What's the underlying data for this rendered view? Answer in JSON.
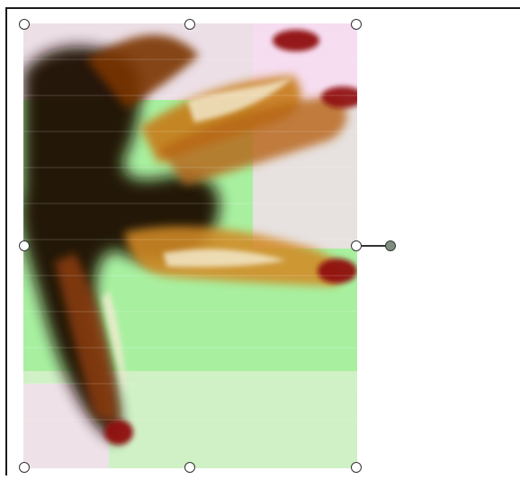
{
  "canvas": {
    "background": "#ffffff",
    "frame_color": "#1a1a1a"
  },
  "selected_object": {
    "type": "image",
    "icon": "selected-image-icon",
    "colors": {
      "background_green": "#a8f0a0",
      "pink": "#f8dcf2",
      "dark": "#1a0c04",
      "brown": "#7a3306",
      "orange": "#c77a16",
      "red": "#8f1111",
      "cream": "#f4ebd0"
    },
    "handles": [
      "top-left",
      "top-middle",
      "top-right",
      "middle-left",
      "middle-right",
      "bottom-left",
      "bottom-middle",
      "bottom-right"
    ],
    "rotation_handle_color": "#7f8f7f"
  }
}
